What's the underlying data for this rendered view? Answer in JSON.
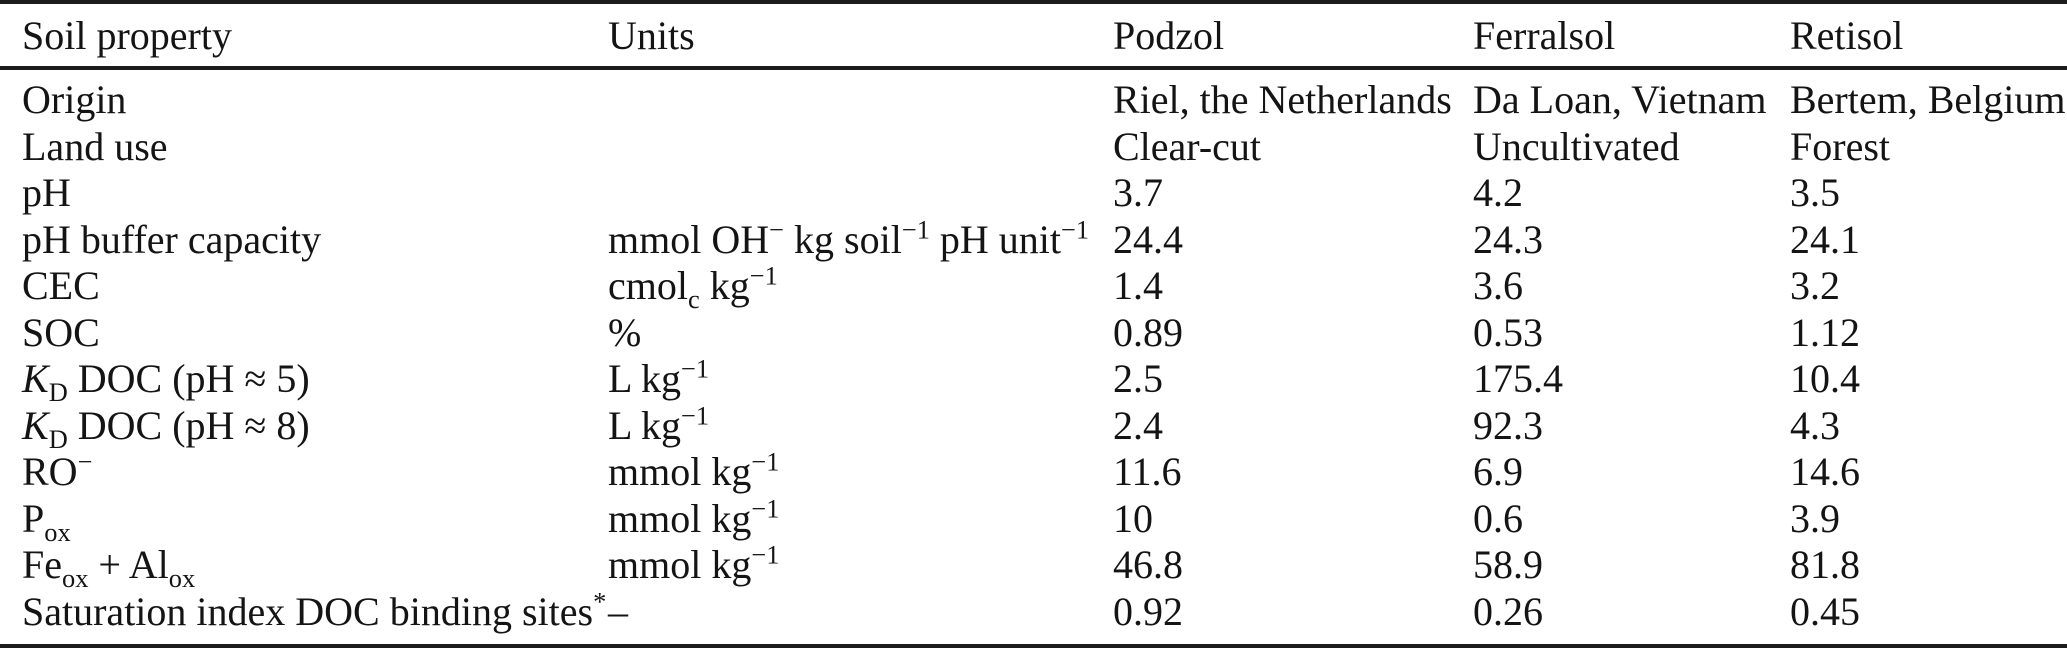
{
  "colors": {
    "background": "#ffffff",
    "text": "#141414",
    "rule": "#1c1c1c"
  },
  "table": {
    "columns": {
      "property": "Soil property",
      "units": "Units",
      "podzol": "Podzol",
      "ferralsol": "Ferralsol",
      "retisol": "Retisol"
    },
    "rows": [
      {
        "property": "Origin",
        "units": "",
        "podzol": "Riel, the Netherlands",
        "ferralsol": "Da Loan, Vietnam",
        "retisol": "Bertem, Belgium"
      },
      {
        "property": "Land use",
        "units": "",
        "podzol": "Clear-cut",
        "ferralsol": "Uncultivated",
        "retisol": "Forest"
      },
      {
        "property": "pH",
        "units": "",
        "podzol": "3.7",
        "ferralsol": "4.2",
        "retisol": "3.5"
      },
      {
        "property": "pH buffer capacity",
        "units": "mmol OH^{−} kg soil^{−1} pH unit^{−1}",
        "podzol": "24.4",
        "ferralsol": "24.3",
        "retisol": "24.1"
      },
      {
        "property": "CEC",
        "units": "cmol_{c} kg^{−1}",
        "podzol": "1.4",
        "ferralsol": "3.6",
        "retisol": "3.2"
      },
      {
        "property": "SOC",
        "units": "%",
        "podzol": "0.89",
        "ferralsol": "0.53",
        "retisol": "1.12"
      },
      {
        "property": "//K//_{D} DOC (pH ≈ 5)",
        "units": "L kg^{−1}",
        "podzol": "2.5",
        "ferralsol": "175.4",
        "retisol": "10.4"
      },
      {
        "property": "//K//_{D} DOC (pH ≈ 8)",
        "units": "L kg^{−1}",
        "podzol": "2.4",
        "ferralsol": "92.3",
        "retisol": "4.3"
      },
      {
        "property": "RO^{−}",
        "units": "mmol kg^{−1}",
        "podzol": "11.6",
        "ferralsol": "6.9",
        "retisol": "14.6"
      },
      {
        "property": "P_{ox}",
        "units": "mmol kg^{−1}",
        "podzol": "10",
        "ferralsol": "0.6",
        "retisol": "3.9"
      },
      {
        "property": "Fe_{ox} + Al_{ox}",
        "units": "mmol kg^{−1}",
        "podzol": "46.8",
        "ferralsol": "58.9",
        "retisol": "81.8"
      },
      {
        "property": "Saturation index DOC binding sites^{*}",
        "units": "–",
        "podzol": "0.92",
        "ferralsol": "0.26",
        "retisol": "0.45"
      }
    ]
  }
}
